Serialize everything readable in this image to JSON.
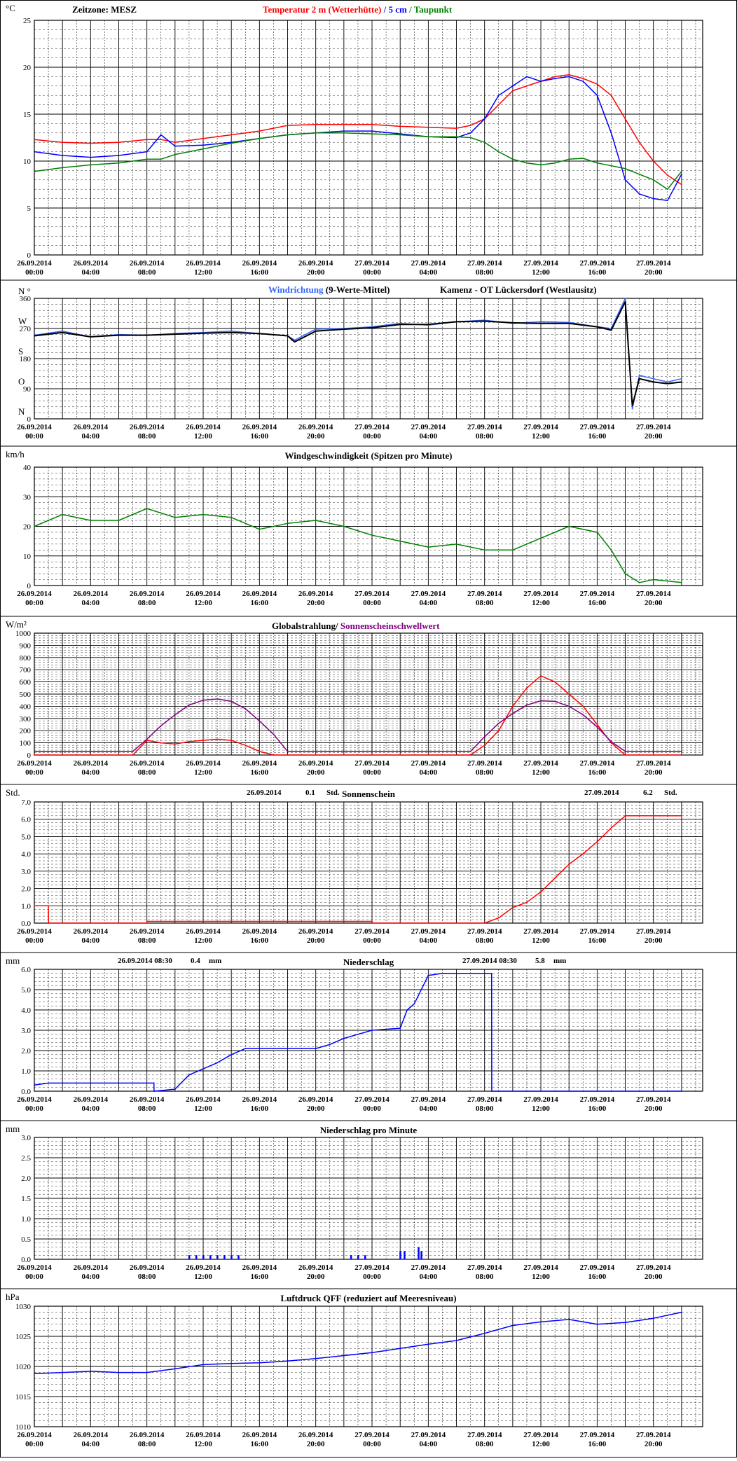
{
  "page": {
    "timezone_label": "Zeitzone: MESZ",
    "x_ticks": [
      [
        "26.09.2014",
        "00:00"
      ],
      [
        "26.09.2014",
        "04:00"
      ],
      [
        "26.09.2014",
        "08:00"
      ],
      [
        "26.09.2014",
        "12:00"
      ],
      [
        "26.09.2014",
        "16:00"
      ],
      [
        "26.09.2014",
        "20:00"
      ],
      [
        "27.09.2014",
        "00:00"
      ],
      [
        "27.09.2014",
        "04:00"
      ],
      [
        "27.09.2014",
        "08:00"
      ],
      [
        "27.09.2014",
        "12:00"
      ],
      [
        "27.09.2014",
        "16:00"
      ],
      [
        "27.09.2014",
        "20:00"
      ]
    ],
    "colors": {
      "red": "#ff0000",
      "blue": "#0000ff",
      "green": "#008000",
      "lightblue": "#3366ff",
      "purple": "#800080",
      "black": "#000000"
    }
  },
  "chart_data": [
    {
      "id": "temperature",
      "type": "line",
      "unit": "°C",
      "title_parts": [
        {
          "text": "Temperatur 2 m (Wetterhütte)",
          "color": "#ff0000"
        },
        {
          "text": "  /  ",
          "color": "#0000ff"
        },
        {
          "text": "5 cm",
          "color": "#0000ff"
        },
        {
          "text": " / ",
          "color": "#008000"
        },
        {
          "text": "Taupunkt",
          "color": "#008000"
        }
      ],
      "ylim": [
        0,
        25
      ],
      "yticks": [
        "0",
        "5",
        "10",
        "15",
        "20",
        "25"
      ],
      "grid": true,
      "x_hours": [
        0,
        2,
        4,
        6,
        8,
        9,
        10,
        12,
        14,
        16,
        18,
        20,
        22,
        24,
        26,
        28,
        30,
        31,
        32,
        33,
        34,
        35,
        36,
        37,
        38,
        39,
        40,
        41,
        42,
        43,
        44,
        45,
        46
      ],
      "series": [
        {
          "name": "Temperatur 2 m (Wetterhütte)",
          "color": "#ff0000",
          "values": [
            12.3,
            12.0,
            11.9,
            12.0,
            12.3,
            12.3,
            12.0,
            12.4,
            12.8,
            13.2,
            13.8,
            13.9,
            13.9,
            13.9,
            13.7,
            13.6,
            13.5,
            13.8,
            14.5,
            16.0,
            17.5,
            18.0,
            18.5,
            19.0,
            19.2,
            18.8,
            18.2,
            17.0,
            14.5,
            12.0,
            10.0,
            8.5,
            7.5
          ]
        },
        {
          "name": "5 cm",
          "color": "#0000ff",
          "values": [
            11.0,
            10.6,
            10.4,
            10.6,
            11.0,
            12.8,
            11.6,
            11.7,
            12.0,
            12.4,
            12.8,
            13.0,
            13.2,
            13.2,
            12.9,
            12.6,
            12.5,
            13.0,
            14.5,
            17.0,
            18.0,
            19.0,
            18.5,
            18.8,
            19.0,
            18.5,
            17.0,
            13.0,
            8.0,
            6.5,
            6.0,
            5.8,
            8.6
          ]
        },
        {
          "name": "Taupunkt",
          "color": "#008000",
          "values": [
            8.9,
            9.3,
            9.6,
            9.8,
            10.2,
            10.2,
            10.7,
            11.3,
            11.9,
            12.4,
            12.8,
            13.0,
            13.0,
            12.9,
            12.8,
            12.6,
            12.6,
            12.5,
            12.0,
            11.0,
            10.2,
            9.8,
            9.6,
            9.8,
            10.2,
            10.3,
            9.8,
            9.5,
            9.2,
            8.6,
            8.0,
            7.0,
            8.9
          ]
        }
      ]
    },
    {
      "id": "winddir",
      "type": "line",
      "title_parts": [
        {
          "text": "Windrichtung",
          "color": "#3366ff"
        },
        {
          "text": " (9-Werte-Mittel)",
          "color": "#000000"
        },
        {
          "text": "Kamenz - OT Lückersdorf (Westlausitz)",
          "color": "#000000"
        }
      ],
      "ylim": [
        0,
        360
      ],
      "yticks": [
        "0",
        "90",
        "180",
        "270",
        "360"
      ],
      "compass_labels": [
        "N °",
        "W",
        "S",
        "O",
        "N"
      ],
      "x_hours": [
        0,
        2,
        4,
        6,
        8,
        10,
        12,
        14,
        16,
        18,
        18.5,
        20,
        22,
        24,
        26,
        28,
        30,
        32,
        34,
        36,
        38,
        40,
        41,
        42,
        42.5,
        43,
        44,
        45,
        46
      ],
      "series": [
        {
          "name": "Windrichtung",
          "color": "#3366ff",
          "values": [
            250,
            262,
            245,
            252,
            250,
            255,
            258,
            262,
            255,
            248,
            235,
            268,
            270,
            275,
            285,
            280,
            290,
            295,
            285,
            290,
            288,
            275,
            270,
            360,
            30,
            130,
            120,
            110,
            120
          ]
        },
        {
          "name": "9-Werte-Mittel",
          "color": "#000000",
          "values": [
            248,
            258,
            245,
            250,
            250,
            253,
            256,
            258,
            255,
            248,
            230,
            262,
            268,
            272,
            282,
            282,
            290,
            292,
            287,
            285,
            285,
            275,
            265,
            350,
            40,
            120,
            110,
            105,
            110
          ]
        }
      ]
    },
    {
      "id": "windspeed",
      "type": "line",
      "unit": "km/h",
      "title": "Windgeschwindigkeit (Spitzen pro Minute)",
      "ylim": [
        0,
        40
      ],
      "yticks": [
        "0",
        "10",
        "20",
        "30",
        "40"
      ],
      "x_hours": [
        0,
        2,
        4,
        6,
        8,
        10,
        12,
        14,
        16,
        18,
        20,
        22,
        24,
        26,
        28,
        30,
        32,
        34,
        36,
        38,
        40,
        41,
        42,
        43,
        44,
        46
      ],
      "series": [
        {
          "name": "Windgeschwindigkeit",
          "color": "#008000",
          "values": [
            20,
            24,
            22,
            22,
            26,
            23,
            24,
            23,
            19,
            21,
            22,
            20,
            17,
            15,
            13,
            14,
            12,
            12,
            16,
            20,
            18,
            12,
            4,
            1,
            2,
            1
          ]
        }
      ]
    },
    {
      "id": "radiation",
      "type": "line",
      "unit": "W/m²",
      "title_parts": [
        {
          "text": "Globalstrahlung/ ",
          "color": "#000000"
        },
        {
          "text": "Sonnenscheinschwellwert",
          "color": "#800080"
        }
      ],
      "ylim": [
        0,
        1000
      ],
      "yticks": [
        "0",
        "100",
        "200",
        "300",
        "400",
        "500",
        "600",
        "700",
        "800",
        "900",
        "1000"
      ],
      "x_hours": [
        0,
        7,
        8,
        9,
        10,
        11,
        12,
        13,
        14,
        15,
        16,
        17,
        18,
        31,
        32,
        33,
        34,
        35,
        36,
        37,
        38,
        39,
        40,
        41,
        42,
        46
      ],
      "series": [
        {
          "name": "Globalstrahlung",
          "color": "#ff0000",
          "values": [
            0,
            0,
            120,
            100,
            90,
            110,
            120,
            130,
            120,
            80,
            30,
            0,
            0,
            0,
            80,
            200,
            400,
            550,
            650,
            600,
            500,
            400,
            250,
            100,
            0,
            0
          ]
        },
        {
          "name": "Sonnenscheinschwellwert",
          "color": "#800080",
          "values": [
            30,
            30,
            130,
            240,
            330,
            410,
            450,
            460,
            440,
            380,
            280,
            170,
            30,
            30,
            150,
            260,
            340,
            410,
            445,
            440,
            400,
            330,
            230,
            110,
            30,
            30
          ]
        }
      ]
    },
    {
      "id": "sunshine",
      "type": "line",
      "unit": "Std.",
      "title": "Sonnenschein",
      "summary": [
        {
          "date": "26.09.2014",
          "value": "0.1",
          "unit": "Std."
        },
        {
          "date": "27.09.2014",
          "value": "6.2",
          "unit": "Std."
        }
      ],
      "ylim": [
        0,
        7
      ],
      "yticks": [
        "0.0",
        "1.0",
        "2.0",
        "3.0",
        "4.0",
        "5.0",
        "6.0",
        "7.0"
      ],
      "x_hours": [
        0,
        1,
        1.01,
        8,
        8.01,
        24,
        24.01,
        32,
        33,
        34,
        35,
        36,
        37,
        38,
        39,
        40,
        41,
        42,
        46
      ],
      "series": [
        {
          "name": "Sonnenschein",
          "color": "#ff0000",
          "values": [
            1.0,
            1.0,
            0.0,
            0.0,
            0.1,
            0.1,
            0.0,
            0.0,
            0.3,
            0.9,
            1.2,
            1.8,
            2.6,
            3.4,
            4.0,
            4.7,
            5.5,
            6.2,
            6.2
          ]
        }
      ]
    },
    {
      "id": "precip",
      "type": "line",
      "unit": "mm",
      "title": "Niederschlag",
      "summary": [
        {
          "date": "26.09.2014 08:30",
          "value": "0.4",
          "unit": "mm"
        },
        {
          "date": "27.09.2014 08:30",
          "value": "5.8",
          "unit": "mm"
        }
      ],
      "ylim": [
        0,
        6
      ],
      "yticks": [
        "0.0",
        "1.0",
        "2.0",
        "3.0",
        "4.0",
        "5.0",
        "6.0"
      ],
      "x_hours": [
        0,
        1,
        8.5,
        8.51,
        10,
        11,
        12,
        13,
        14,
        15,
        20,
        21,
        22,
        24,
        26,
        26.5,
        27,
        28,
        29,
        32.5,
        32.51,
        46
      ],
      "series": [
        {
          "name": "Niederschlag",
          "color": "#0000ff",
          "values": [
            0.3,
            0.4,
            0.4,
            0.0,
            0.1,
            0.8,
            1.1,
            1.4,
            1.8,
            2.1,
            2.1,
            2.3,
            2.6,
            3.0,
            3.1,
            4.0,
            4.3,
            5.7,
            5.8,
            5.8,
            0.0,
            0.0
          ]
        }
      ]
    },
    {
      "id": "precip_min",
      "type": "bar",
      "unit": "mm",
      "title": "Niederschlag pro Minute",
      "ylim": [
        0,
        3
      ],
      "yticks": [
        "0.0",
        "0.5",
        "1.0",
        "1.5",
        "2.0",
        "2.5",
        "3.0"
      ],
      "x_hours": [
        11,
        11.5,
        12,
        12.5,
        13,
        13.5,
        14,
        14.5,
        22.5,
        23,
        23.5,
        26,
        26.3,
        27.3,
        27.5
      ],
      "series": [
        {
          "name": "Niederschlag pro Minute",
          "color": "#0000ff",
          "values": [
            0.1,
            0.1,
            0.1,
            0.1,
            0.1,
            0.1,
            0.1,
            0.1,
            0.1,
            0.1,
            0.1,
            0.2,
            0.2,
            0.3,
            0.2
          ]
        }
      ]
    },
    {
      "id": "pressure",
      "type": "line",
      "unit": "hPa",
      "title": "Luftdruck QFF (reduziert auf Meeresniveau)",
      "ylim": [
        1010,
        1030
      ],
      "yticks": [
        "1010",
        "1015",
        "1020",
        "1025",
        "1030"
      ],
      "x_hours": [
        0,
        2,
        4,
        6,
        8,
        10,
        12,
        14,
        16,
        18,
        20,
        22,
        24,
        26,
        28,
        30,
        32,
        34,
        36,
        38,
        40,
        42,
        44,
        46
      ],
      "series": [
        {
          "name": "Luftdruck QFF",
          "color": "#0000ff",
          "values": [
            1018.8,
            1019.0,
            1019.2,
            1019.0,
            1019.0,
            1019.6,
            1020.3,
            1020.5,
            1020.6,
            1020.9,
            1021.3,
            1021.8,
            1022.3,
            1023.0,
            1023.7,
            1024.3,
            1025.5,
            1026.8,
            1027.4,
            1027.8,
            1027.0,
            1027.3,
            1028.0,
            1029.0
          ]
        }
      ]
    }
  ]
}
